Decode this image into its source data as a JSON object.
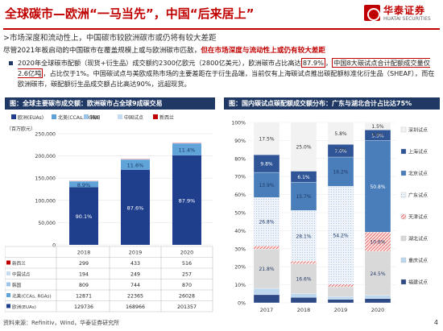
{
  "header": {
    "title": "全球碳市—欧洲“一马当先”，中国“后来居上”",
    "brand_cn": "华泰证券",
    "brand_en": "HUATAI SECURITIES"
  },
  "subtitle": ">市场深度和流动性上，中国碳市较欧洲碳市或仍将有较大差距",
  "conclusion": {
    "normal": "尽管2021年板启动的中国碳市在覆盖规模上或与欧洲碳市匹敌，",
    "red": "但在市场深度与流动性上或仍有较大差距"
  },
  "bullets": [
    {
      "a": "2020年全球碳市配额（现货+衍生品）成交额约2300亿欧元（2800亿美元），欧洲碳市占比高达",
      "b": "87.9%",
      "c": "，",
      "d": "中国8大碳试点合计配额成交量仅2.6亿吨",
      "e": "，占比仅于1%。中国碳试点与美欧成熟市场的主要差距在于衍生品端，当前仅有上海碳试点推出碳配额标准化衍生品（SHEAF），而在欧洲碳市，碳配额衍生品成交额占比高达90%，远超现货。"
    }
  ],
  "left_chart": {
    "header": "图：全球主要碳市成交额：欧洲碳市占全球9成碳交易",
    "unit": "（百万欧元）",
    "ylim": [
      0,
      250000
    ],
    "yticks": [
      "0",
      "50,000",
      "100,000",
      "150,000",
      "200,000",
      "250,000"
    ],
    "row_labels": [
      "新西兰",
      "中国试点",
      "韩国",
      "北美(CCAs, RGAs)",
      "欧洲(EUAs)"
    ],
    "table_rows": [
      [
        "299",
        "433",
        "516"
      ],
      [
        "194",
        "249",
        "257"
      ],
      [
        "809",
        "744",
        "870"
      ],
      [
        "12871",
        "22365",
        "26028"
      ],
      [
        "129736",
        "168966",
        "201357"
      ]
    ]
  },
  "right_chart": {
    "header": "图：国内碳试点碳配额成交额分布：广东与湖北合计占比达75%",
    "yticks": [
      "0%",
      "10%",
      "20%",
      "30%",
      "40%",
      "50%",
      "60%",
      "70%",
      "80%",
      "90%",
      "100%"
    ]
  },
  "chart_data": [
    {
      "type": "bar",
      "title": "全球主要碳市成交额：欧洲碳市占全球9成碳交易",
      "ylabel": "（百万欧元）",
      "categories": [
        "2018",
        "2019",
        "2020"
      ],
      "ylim": [
        0,
        250000
      ],
      "series": [
        {
          "name": "欧洲(EUAs)",
          "color": "#1f3e8c",
          "values": [
            129736,
            168966,
            201357
          ],
          "labels": [
            "90.1%",
            "87.6%",
            "87.9%"
          ]
        },
        {
          "name": "北美(CCAs, RGAs)",
          "color": "#5fa3d9",
          "values": [
            12871,
            22365,
            26028
          ],
          "labels": [
            "8.9%",
            "11.6%",
            "11.4%"
          ]
        },
        {
          "name": "韩国",
          "color": "#9dc3e6",
          "values": [
            809,
            744,
            870
          ]
        },
        {
          "name": "中国试点",
          "color": "#c6dbef",
          "values": [
            194,
            249,
            257
          ]
        },
        {
          "name": "新西兰",
          "color": "#c00000",
          "values": [
            299,
            433,
            516
          ]
        }
      ]
    },
    {
      "type": "bar",
      "stacked": "percent",
      "title": "国内碳试点碳配额成交额分布：广东与湖北合计占比达75%",
      "categories": [
        "2017",
        "2018",
        "2019",
        "2020"
      ],
      "ylim": [
        0,
        100
      ],
      "series": [
        {
          "name": "福建试点",
          "color": "#2e4a86",
          "values": [
            4.5,
            3.0,
            1.9,
            2.3
          ]
        },
        {
          "name": "重庆试点",
          "color": "#bdd7ee",
          "values": [
            3.5,
            2.0,
            1.5,
            1.8
          ]
        },
        {
          "name": "湖北试点",
          "color": "#d9d9d9",
          "values": [
            21.8,
            16.6,
            5.5,
            24.5
          ]
        },
        {
          "name": "天津试点",
          "color": "#f4b6b6",
          "values": [
            1.8,
            1.5,
            1.5,
            10.6
          ]
        },
        {
          "name": "广东试点",
          "color": "#dce6f2",
          "values": [
            26.8,
            28.1,
            54.2,
            0
          ]
        },
        {
          "name": "北京试点",
          "color": "#4a7ebb",
          "values": [
            13.9,
            15.7,
            16.2,
            50.8
          ]
        },
        {
          "name": "上海试点",
          "color": "#2f5597",
          "values": [
            9.8,
            6.1,
            7.0,
            5.9
          ]
        },
        {
          "name": "深圳试点",
          "color": "#f2f2f2",
          "values": [
            17.9,
            27.0,
            12.2,
            4.1
          ]
        }
      ],
      "top_labels": [
        [
          "17.5%",
          "25.0%",
          "5.8%",
          "1.5%"
        ],
        [
          "",
          "",
          "7.0%",
          "4.6%"
        ]
      ],
      "bar_labels": [
        [
          "9.8%",
          "6.1%",
          "7.0%",
          "5.9%"
        ],
        [
          "13.9%",
          "15.7%",
          "16.2%",
          "50.8%"
        ],
        [
          "26.8%",
          "28.1%",
          "54.2%",
          ""
        ],
        [
          "21.8%",
          "16.6%",
          "",
          "24.5%"
        ],
        [
          "",
          "",
          "",
          "10.6%"
        ]
      ]
    }
  ],
  "footer": {
    "source": "资料来源：Refinitiv，Wind，华泰证券研究所",
    "page": "4"
  }
}
